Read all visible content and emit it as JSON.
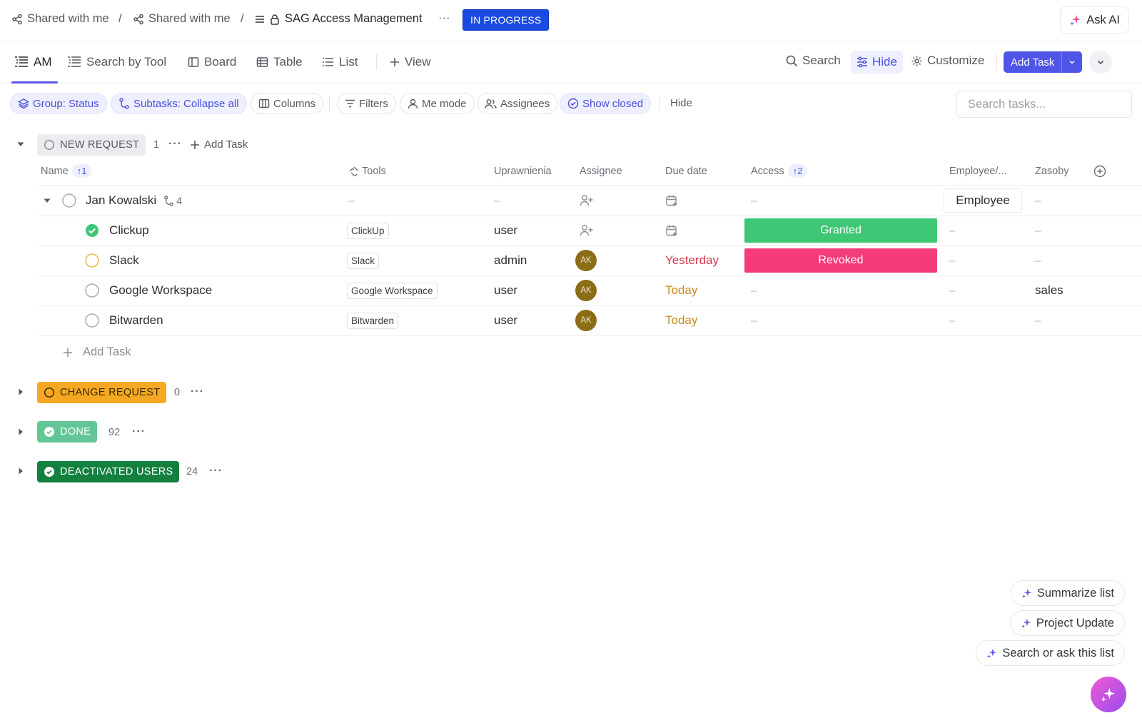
{
  "breadcrumb": {
    "items": [
      "Shared with me",
      "Shared with me",
      "SAG Access Management"
    ],
    "separator": "/",
    "more": "···",
    "status": "IN PROGRESS"
  },
  "ask_ai": "Ask AI",
  "views": {
    "tabs": [
      "AM",
      "Search by Tool",
      "Board",
      "Table",
      "List"
    ],
    "add_view": "View",
    "search": "Search",
    "hide": "Hide",
    "customize": "Customize",
    "add_task": "Add Task"
  },
  "filters": {
    "group": "Group: Status",
    "subtasks": "Subtasks: Collapse all",
    "columns": "Columns",
    "filters": "Filters",
    "me_mode": "Me mode",
    "assignees": "Assignees",
    "show_closed": "Show closed",
    "hide": "Hide",
    "search_placeholder": "Search tasks..."
  },
  "group_new": {
    "name": "NEW REQUEST",
    "count": "1",
    "dots": "···",
    "add_task": "Add Task"
  },
  "columns": {
    "name": "Name",
    "name_sort": "↑1",
    "tools": "Tools",
    "uprawnienia": "Uprawnienia",
    "assignee": "Assignee",
    "due": "Due date",
    "access": "Access",
    "access_sort": "↑2",
    "employee": "Employee/...",
    "zasoby": "Zasoby"
  },
  "parent_task": {
    "name": "Jan Kowalski",
    "subtask_count": "4",
    "tool": "–",
    "perm": "–",
    "access": "–",
    "employee": "Employee",
    "zasoby": "–"
  },
  "subtasks": [
    {
      "name": "Clickup",
      "tool": "ClickUp",
      "perm": "user",
      "assignee": "",
      "due": "",
      "access": "Granted",
      "employee": "–",
      "zasoby": "–"
    },
    {
      "name": "Slack",
      "tool": "Slack",
      "perm": "admin",
      "assignee": "AK",
      "due": "Yesterday",
      "access": "Revoked",
      "employee": "–",
      "zasoby": "–"
    },
    {
      "name": "Google Workspace",
      "tool": "Google Workspace",
      "perm": "user",
      "assignee": "AK",
      "due": "Today",
      "access": "–",
      "employee": "–",
      "zasoby": "sales"
    },
    {
      "name": "Bitwarden",
      "tool": "Bitwarden",
      "perm": "user",
      "assignee": "AK",
      "due": "Today",
      "access": "–",
      "employee": "–",
      "zasoby": "–"
    }
  ],
  "add_task_row": "Add Task",
  "groups": [
    {
      "name": "CHANGE REQUEST",
      "count": "0",
      "dots": "···"
    },
    {
      "name": "DONE",
      "count": "92",
      "dots": "···"
    },
    {
      "name": "DEACTIVATED USERS",
      "count": "24",
      "dots": "···"
    }
  ],
  "ai_actions": [
    "Summarize list",
    "Project Update",
    "Search or ask this list"
  ],
  "colors": {
    "accent": "#4f55e6",
    "in_progress": "#1a4be0",
    "granted": "#3ec774",
    "revoked": "#f43b7c",
    "change_request": "#f7a823",
    "done": "#63c697",
    "deactivated": "#14803e",
    "due_yesterday": "#d6364d",
    "due_today": "#c48a1e"
  }
}
